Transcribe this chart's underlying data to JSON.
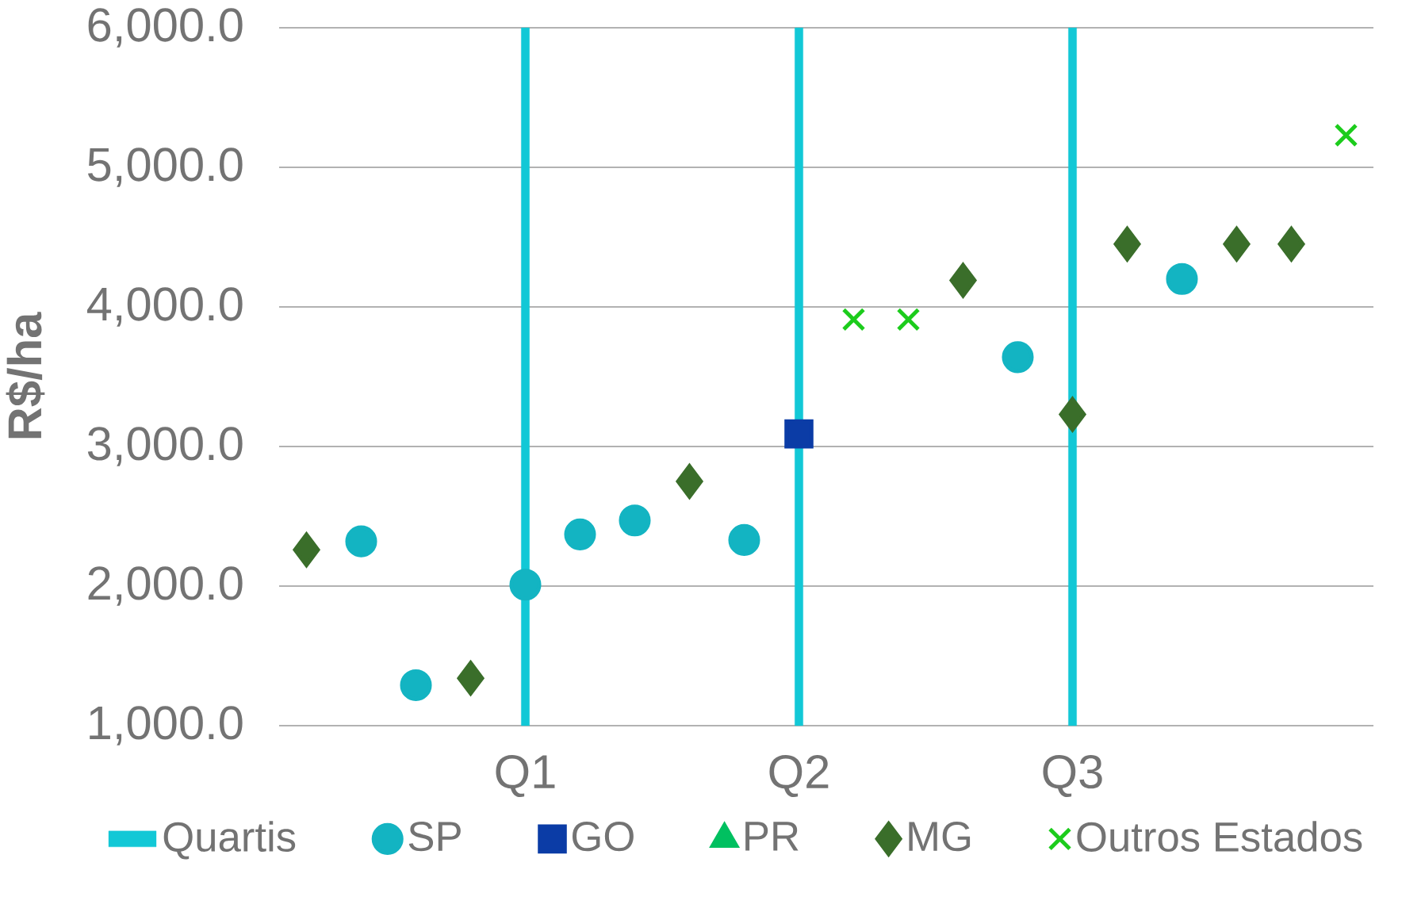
{
  "chart_data": {
    "type": "scatter",
    "ylabel": "R$/ha",
    "categories": [
      null,
      null,
      null,
      null,
      "Q1",
      null,
      null,
      null,
      null,
      "Q2",
      null,
      null,
      null,
      null,
      "Q3",
      null,
      null,
      null,
      null,
      null
    ],
    "ylim": [
      1000,
      6000
    ],
    "yticks": [
      {
        "value": 1000,
        "label": "1,000.0"
      },
      {
        "value": 2000,
        "label": "2,000.0"
      },
      {
        "value": 3000,
        "label": "3,000.0"
      },
      {
        "value": 4000,
        "label": "4,000.0"
      },
      {
        "value": 5000,
        "label": "5,000.0"
      },
      {
        "value": 6000,
        "label": "6,000.0"
      }
    ],
    "grid": "y",
    "legend": "bottom",
    "series": [
      {
        "name": "Quartis",
        "type": "bar",
        "color": "#12c8d6",
        "values": [
          null,
          null,
          null,
          null,
          6000,
          null,
          null,
          null,
          null,
          6000,
          null,
          null,
          null,
          null,
          6000,
          null,
          null,
          null,
          null,
          null
        ]
      },
      {
        "name": "SP",
        "color": "#13b4c2",
        "marker": "circle",
        "values": [
          null,
          2320,
          1290,
          null,
          2010,
          2370,
          2470,
          null,
          2330,
          null,
          null,
          null,
          null,
          3640,
          null,
          null,
          4200,
          null,
          null,
          null
        ]
      },
      {
        "name": "GO",
        "color": "#0b3ca6",
        "marker": "square",
        "values": [
          null,
          null,
          null,
          null,
          null,
          null,
          null,
          null,
          null,
          3090,
          null,
          null,
          null,
          null,
          null,
          null,
          null,
          null,
          null,
          null
        ]
      },
      {
        "name": "PR",
        "color": "#00c060",
        "marker": "triangle",
        "values": [
          null,
          null,
          null,
          null,
          null,
          null,
          null,
          null,
          null,
          null,
          null,
          null,
          null,
          null,
          null,
          null,
          null,
          null,
          null,
          null
        ]
      },
      {
        "name": "MG",
        "color": "#3a6e2a",
        "marker": "diamond",
        "values": [
          2260,
          null,
          null,
          1340,
          null,
          null,
          null,
          2750,
          null,
          null,
          null,
          null,
          4190,
          null,
          3230,
          4450,
          null,
          4450,
          4450,
          null
        ]
      },
      {
        "name": "Outros Estados",
        "color": "#1ccc1c",
        "marker": "cross",
        "values": [
          null,
          null,
          null,
          null,
          null,
          null,
          null,
          null,
          null,
          null,
          3910,
          3910,
          null,
          null,
          null,
          null,
          null,
          null,
          null,
          5230
        ]
      }
    ]
  }
}
